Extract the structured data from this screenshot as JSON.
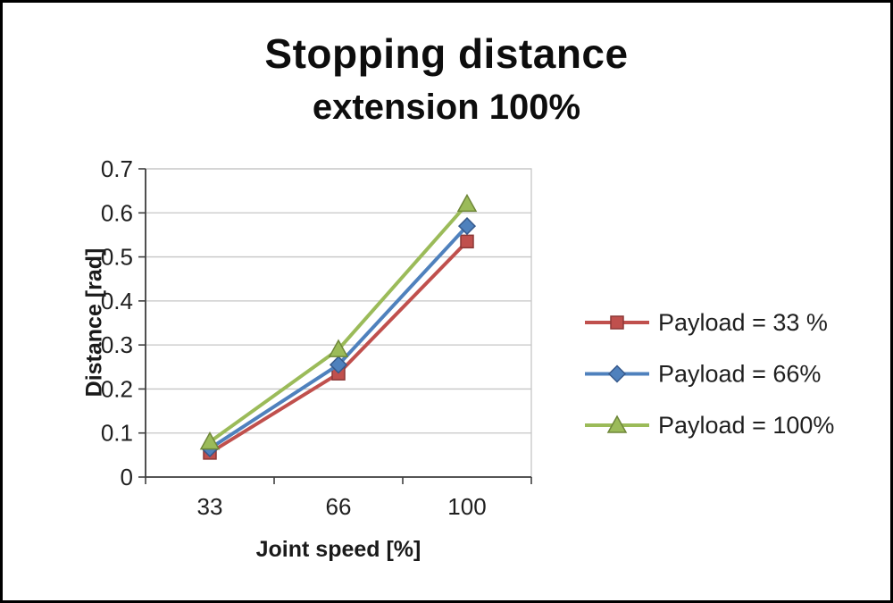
{
  "title": {
    "line1": "Stopping distance",
    "line2": "extension 100%"
  },
  "chart_data": {
    "type": "line",
    "title": "Stopping distance extension 100%",
    "xlabel": "Joint speed [%]",
    "ylabel": "Distance [rad]",
    "categories": [
      "33",
      "66",
      "100"
    ],
    "series": [
      {
        "name": "Payload = 33 %",
        "marker": "square",
        "color": "#c0504d",
        "edge": "#8c3836",
        "values": [
          0.055,
          0.235,
          0.535
        ]
      },
      {
        "name": "Payload =  66%",
        "marker": "diamond",
        "color": "#4f81bd",
        "edge": "#36598c",
        "values": [
          0.065,
          0.255,
          0.57
        ]
      },
      {
        "name": "Payload =  100%",
        "marker": "triangle",
        "color": "#9bbb59",
        "edge": "#6e8639",
        "values": [
          0.08,
          0.29,
          0.62
        ]
      }
    ],
    "ylim": [
      0,
      0.7
    ],
    "ytick_step": 0.1,
    "grid": true,
    "legend_position": "right",
    "colors": {
      "gridline": "#c6c6c6",
      "axis": "#3f3f3f",
      "plot_border": "#c6c6c6"
    }
  }
}
